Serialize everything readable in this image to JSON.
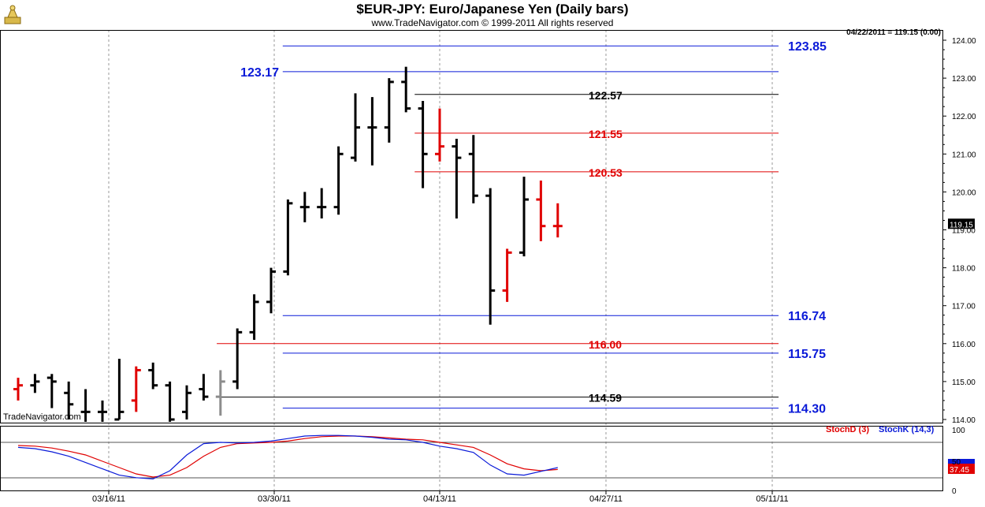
{
  "chart_data": {
    "type": "bar",
    "title": "$EUR-JPY:  Euro/Japanese Yen  (Daily bars)",
    "subtitle": "www.TradeNavigator.com © 1999-2011 All rights reserved",
    "last_quote": "04/22/2011 = 119.15 (0.00)",
    "watermark": "TradeNavigator.com",
    "current_price_label": "119.15",
    "x_tick_labels": [
      "03/16/11",
      "03/30/11",
      "04/13/11",
      "04/27/11",
      "05/11/11"
    ],
    "price_axis": {
      "ylim": [
        114.0,
        124.0
      ],
      "ticks": [
        "124.00",
        "123.00",
        "122.00",
        "121.00",
        "120.00",
        "119.00",
        "118.00",
        "117.00",
        "116.00",
        "115.00",
        "114.00"
      ]
    },
    "bars": [
      {
        "open": 114.8,
        "high": 115.1,
        "low": 114.5,
        "close": 114.9,
        "color": "red"
      },
      {
        "open": 114.9,
        "high": 115.2,
        "low": 114.7,
        "close": 115.0,
        "color": "black"
      },
      {
        "open": 115.1,
        "high": 115.2,
        "low": 114.3,
        "close": 115.0,
        "color": "black"
      },
      {
        "open": 114.7,
        "high": 115.0,
        "low": 114.0,
        "close": 114.4,
        "color": "black"
      },
      {
        "open": 114.2,
        "high": 114.8,
        "low": 113.9,
        "close": 114.2,
        "color": "black"
      },
      {
        "open": 114.2,
        "high": 114.5,
        "low": 113.8,
        "close": 114.2,
        "color": "black"
      },
      {
        "open": 114.0,
        "high": 115.6,
        "low": 114.0,
        "close": 114.2,
        "color": "black"
      },
      {
        "open": 114.5,
        "high": 115.4,
        "low": 114.2,
        "close": 115.3,
        "color": "red"
      },
      {
        "open": 115.3,
        "high": 115.5,
        "low": 114.8,
        "close": 114.9,
        "color": "black"
      },
      {
        "open": 114.9,
        "high": 115.0,
        "low": 113.9,
        "close": 114.0,
        "color": "black"
      },
      {
        "open": 114.2,
        "high": 114.9,
        "low": 114.0,
        "close": 114.7,
        "color": "black"
      },
      {
        "open": 114.8,
        "high": 115.2,
        "low": 114.5,
        "close": 114.6,
        "color": "black"
      },
      {
        "open": 114.6,
        "high": 115.3,
        "low": 114.1,
        "close": 115.0,
        "color": "gray"
      },
      {
        "open": 115.0,
        "high": 116.4,
        "low": 114.8,
        "close": 116.3,
        "color": "black"
      },
      {
        "open": 116.3,
        "high": 117.3,
        "low": 116.1,
        "close": 117.1,
        "color": "black"
      },
      {
        "open": 117.1,
        "high": 118.0,
        "low": 116.8,
        "close": 117.9,
        "color": "black"
      },
      {
        "open": 117.9,
        "high": 119.8,
        "low": 117.8,
        "close": 119.7,
        "color": "black"
      },
      {
        "open": 119.6,
        "high": 120.0,
        "low": 119.2,
        "close": 119.6,
        "color": "black"
      },
      {
        "open": 119.6,
        "high": 120.1,
        "low": 119.3,
        "close": 119.6,
        "color": "black"
      },
      {
        "open": 119.6,
        "high": 121.2,
        "low": 119.4,
        "close": 121.0,
        "color": "black"
      },
      {
        "open": 120.9,
        "high": 122.6,
        "low": 120.8,
        "close": 121.7,
        "color": "black"
      },
      {
        "open": 121.7,
        "high": 122.5,
        "low": 120.7,
        "close": 121.7,
        "color": "black"
      },
      {
        "open": 121.7,
        "high": 123.0,
        "low": 121.3,
        "close": 122.9,
        "color": "black"
      },
      {
        "open": 122.9,
        "high": 123.3,
        "low": 122.1,
        "close": 122.2,
        "color": "black"
      },
      {
        "open": 122.2,
        "high": 122.4,
        "low": 120.1,
        "close": 121.0,
        "color": "black"
      },
      {
        "open": 121.0,
        "high": 122.2,
        "low": 120.8,
        "close": 121.2,
        "color": "red"
      },
      {
        "open": 121.2,
        "high": 121.4,
        "low": 119.3,
        "close": 120.9,
        "color": "black"
      },
      {
        "open": 121.0,
        "high": 121.5,
        "low": 119.7,
        "close": 119.9,
        "color": "black"
      },
      {
        "open": 119.9,
        "high": 120.1,
        "low": 116.5,
        "close": 117.4,
        "color": "black"
      },
      {
        "open": 117.4,
        "high": 118.5,
        "low": 117.1,
        "close": 118.4,
        "color": "red"
      },
      {
        "open": 118.4,
        "high": 120.4,
        "low": 118.3,
        "close": 119.8,
        "color": "black"
      },
      {
        "open": 119.8,
        "high": 120.3,
        "low": 118.7,
        "close": 119.1,
        "color": "red"
      },
      {
        "open": 119.1,
        "high": 119.7,
        "low": 118.8,
        "close": 119.1,
        "color": "red"
      }
    ],
    "levels": [
      {
        "value": 123.85,
        "label": "123.85",
        "color": "#0a1ad8",
        "label_side": "right",
        "x0": 0.3
      },
      {
        "value": 123.17,
        "label": "123.17",
        "color": "#0a1ad8",
        "label_side": "left",
        "x0": 0.3
      },
      {
        "value": 122.57,
        "label": "122.57",
        "color": "#000000",
        "label_side": "mid",
        "x0": 0.44
      },
      {
        "value": 121.55,
        "label": "121.55",
        "color": "#e00000",
        "label_side": "mid",
        "x0": 0.44
      },
      {
        "value": 120.53,
        "label": "120.53",
        "color": "#e00000",
        "label_side": "mid",
        "x0": 0.44
      },
      {
        "value": 116.74,
        "label": "116.74",
        "color": "#0a1ad8",
        "label_side": "right",
        "x0": 0.3
      },
      {
        "value": 116.0,
        "label": "116.00",
        "color": "#e00000",
        "label_side": "mid",
        "x0": 0.23
      },
      {
        "value": 115.75,
        "label": "115.75",
        "color": "#0a1ad8",
        "label_side": "right",
        "x0": 0.3
      },
      {
        "value": 114.59,
        "label": "114.59",
        "color": "#000000",
        "label_side": "mid",
        "x0": 0.23
      },
      {
        "value": 114.3,
        "label": "114.30",
        "color": "#0a1ad8",
        "label_side": "right",
        "x0": 0.3
      }
    ],
    "stochastic": {
      "ylim": [
        0,
        100
      ],
      "ticks": [
        "100",
        "50",
        "0"
      ],
      "legend": [
        "StochD (3)",
        "StochK (14,3)"
      ],
      "colors": {
        "stochd": "#e00000",
        "stochk": "#0a1ad8"
      },
      "last_stochd_label": "37.45",
      "stochd": [
        75,
        74,
        71,
        66,
        60,
        50,
        40,
        30,
        25,
        28,
        40,
        58,
        72,
        78,
        79,
        80,
        82,
        86,
        89,
        90,
        90,
        89,
        87,
        85,
        84,
        80,
        76,
        72,
        60,
        46,
        38,
        35,
        37
      ],
      "stochk": [
        72,
        70,
        65,
        58,
        48,
        38,
        28,
        24,
        22,
        35,
        60,
        78,
        80,
        79,
        80,
        82,
        86,
        90,
        91,
        91,
        90,
        88,
        85,
        84,
        80,
        74,
        70,
        64,
        44,
        30,
        28,
        34,
        40
      ]
    }
  }
}
